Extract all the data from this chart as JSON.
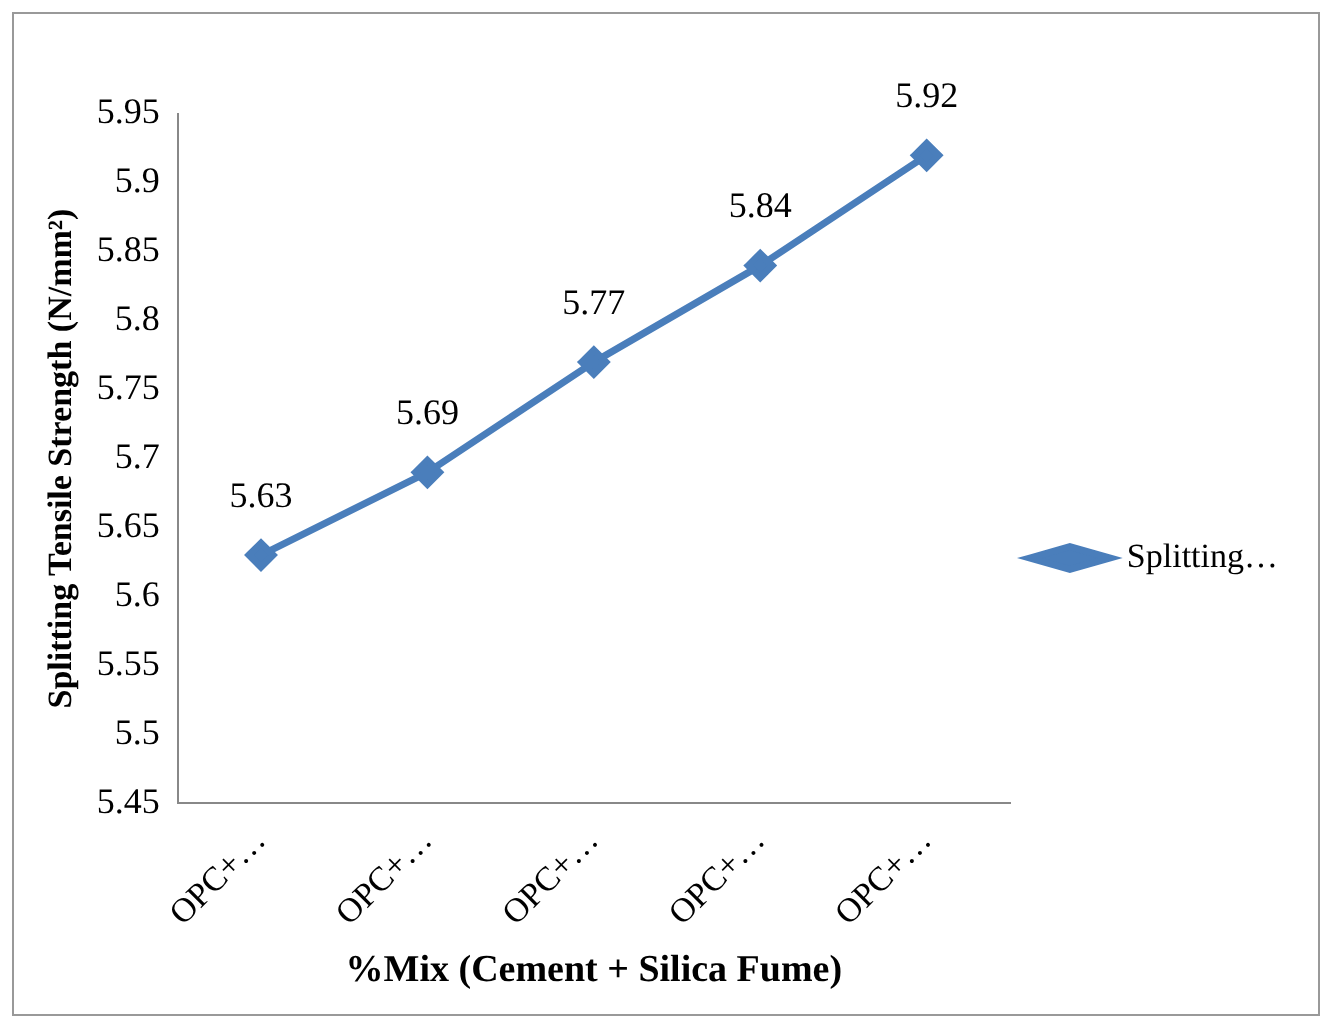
{
  "chart_data": {
    "type": "line",
    "xlabel": "%Mix (Cement + Silica Fume)",
    "ylabel": "Splitting Tensile Strength (N/mm²)",
    "categories": [
      "OPC+…",
      "OPC+…",
      "OPC+…",
      "OPC+…",
      "OPC+…"
    ],
    "series": [
      {
        "name": "Splitting…",
        "color": "#4a7ebb",
        "values": [
          5.63,
          5.69,
          5.77,
          5.84,
          5.92
        ]
      }
    ],
    "ylim": [
      5.45,
      5.95
    ],
    "yticks": [
      5.45,
      5.5,
      5.55,
      5.6,
      5.65,
      5.7,
      5.75,
      5.8,
      5.85,
      5.9,
      5.95
    ],
    "grid": false,
    "legend": "right",
    "marker": "diamond",
    "line_style": "solid",
    "data_labels": true
  }
}
